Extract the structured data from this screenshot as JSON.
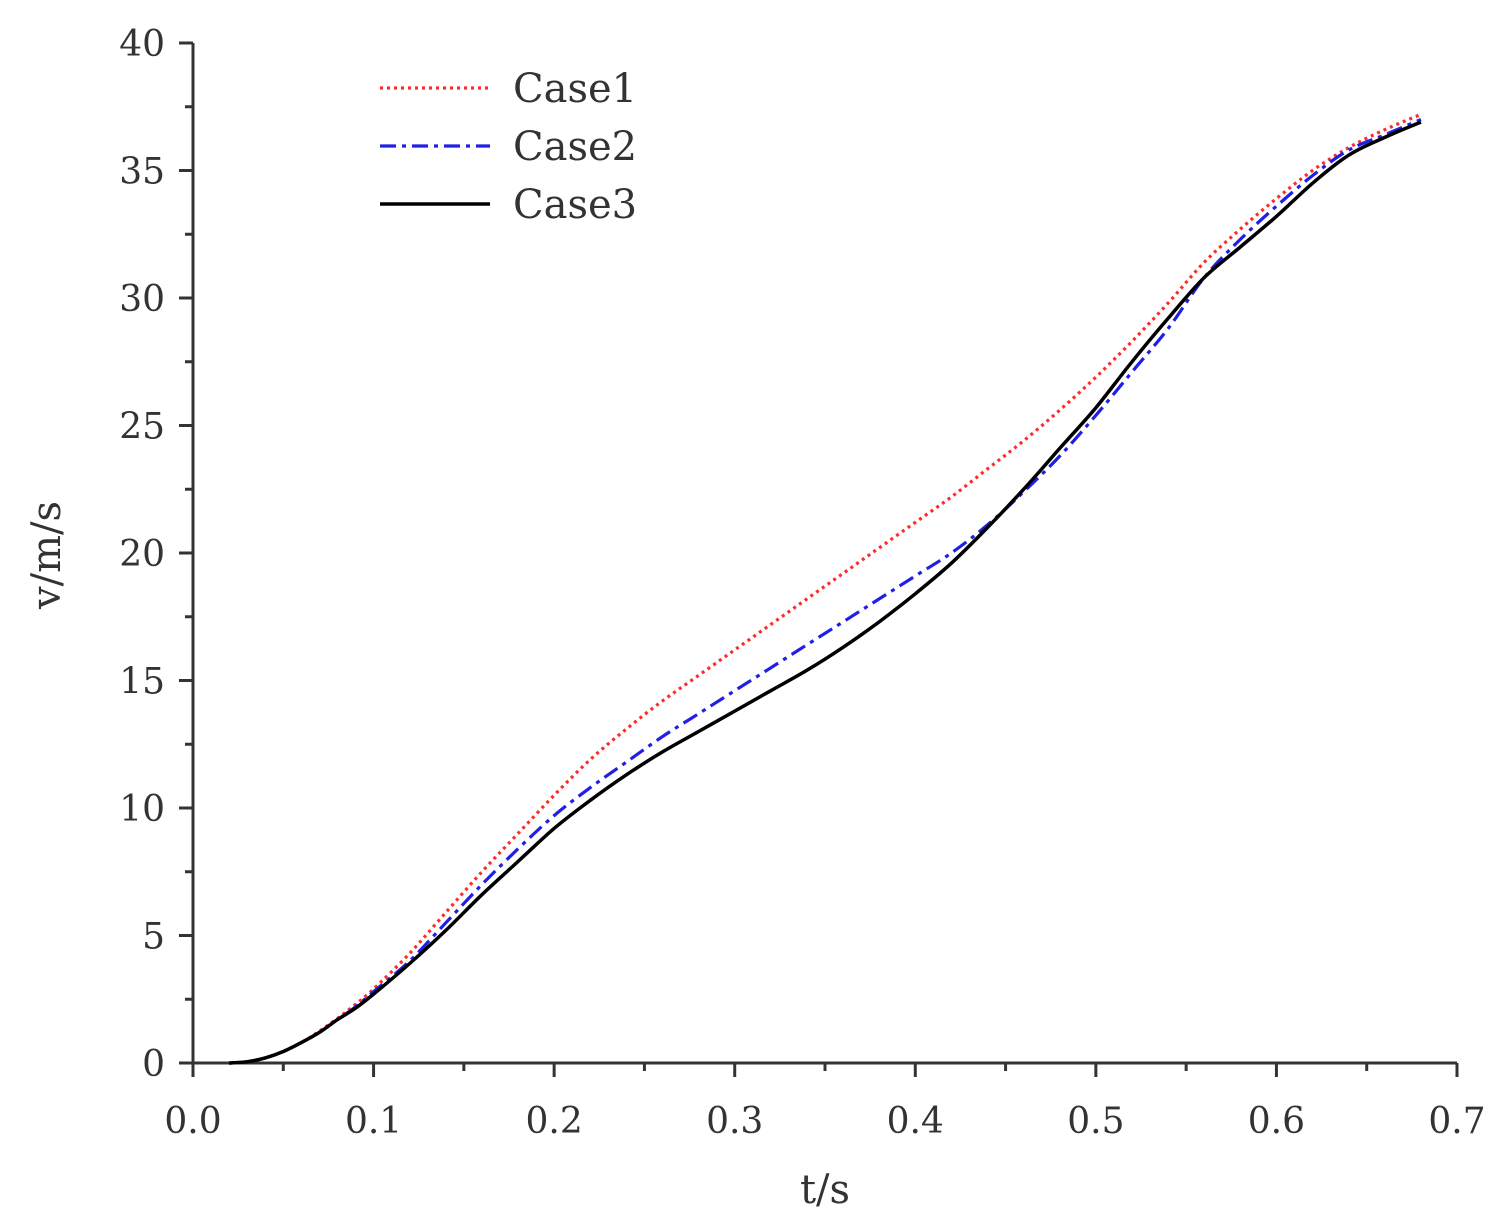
{
  "chart_data": {
    "type": "line",
    "title": "",
    "xlabel": "t/s",
    "ylabel": "v/m/s",
    "xlim": [
      0.0,
      0.7
    ],
    "ylim": [
      0,
      40
    ],
    "grid": false,
    "legend_position": "top-left",
    "x_ticks": [
      0.0,
      0.1,
      0.2,
      0.3,
      0.4,
      0.5,
      0.6,
      0.7
    ],
    "x_tick_labels": [
      "0.0",
      "0.1",
      "0.2",
      "0.3",
      "0.4",
      "0.5",
      "0.6",
      "0.7"
    ],
    "y_ticks": [
      0,
      5,
      10,
      15,
      20,
      25,
      30,
      35,
      40
    ],
    "y_tick_labels": [
      "0",
      "5",
      "10",
      "15",
      "20",
      "25",
      "30",
      "35",
      "40"
    ],
    "x": [
      0.02,
      0.03,
      0.04,
      0.05,
      0.06,
      0.07,
      0.08,
      0.09,
      0.1,
      0.12,
      0.14,
      0.16,
      0.18,
      0.2,
      0.22,
      0.24,
      0.26,
      0.28,
      0.3,
      0.32,
      0.34,
      0.36,
      0.38,
      0.4,
      0.42,
      0.44,
      0.46,
      0.48,
      0.5,
      0.52,
      0.54,
      0.56,
      0.58,
      0.6,
      0.62,
      0.64,
      0.66,
      0.68
    ],
    "series": [
      {
        "name": "Case1",
        "color": "#ff2a2a",
        "dash": "dotted",
        "values": [
          0.0,
          0.05,
          0.2,
          0.45,
          0.8,
          1.25,
          1.75,
          2.3,
          2.9,
          4.3,
          5.9,
          7.5,
          9.0,
          10.5,
          11.9,
          13.1,
          14.2,
          15.2,
          16.2,
          17.2,
          18.2,
          19.2,
          20.2,
          21.2,
          22.2,
          23.3,
          24.4,
          25.6,
          26.9,
          28.3,
          29.8,
          31.4,
          32.7,
          33.9,
          35.0,
          35.9,
          36.6,
          37.2
        ]
      },
      {
        "name": "Case2",
        "color": "#1f1fe6",
        "dash": "dashdot",
        "values": [
          0.0,
          0.05,
          0.2,
          0.45,
          0.8,
          1.2,
          1.7,
          2.2,
          2.8,
          4.0,
          5.5,
          7.0,
          8.4,
          9.7,
          10.8,
          11.8,
          12.8,
          13.7,
          14.6,
          15.5,
          16.4,
          17.3,
          18.2,
          19.1,
          20.0,
          21.1,
          22.4,
          23.8,
          25.4,
          27.1,
          28.8,
          30.8,
          32.3,
          33.6,
          34.8,
          35.8,
          36.4,
          37.0
        ]
      },
      {
        "name": "Case3",
        "color": "#000000",
        "dash": "solid",
        "values": [
          0.0,
          0.05,
          0.2,
          0.45,
          0.8,
          1.2,
          1.7,
          2.15,
          2.7,
          3.9,
          5.2,
          6.6,
          7.9,
          9.2,
          10.3,
          11.3,
          12.2,
          13.0,
          13.8,
          14.6,
          15.4,
          16.3,
          17.3,
          18.4,
          19.6,
          21.0,
          22.5,
          24.1,
          25.7,
          27.5,
          29.2,
          30.8,
          32.0,
          33.2,
          34.5,
          35.6,
          36.3,
          36.9
        ]
      }
    ]
  }
}
